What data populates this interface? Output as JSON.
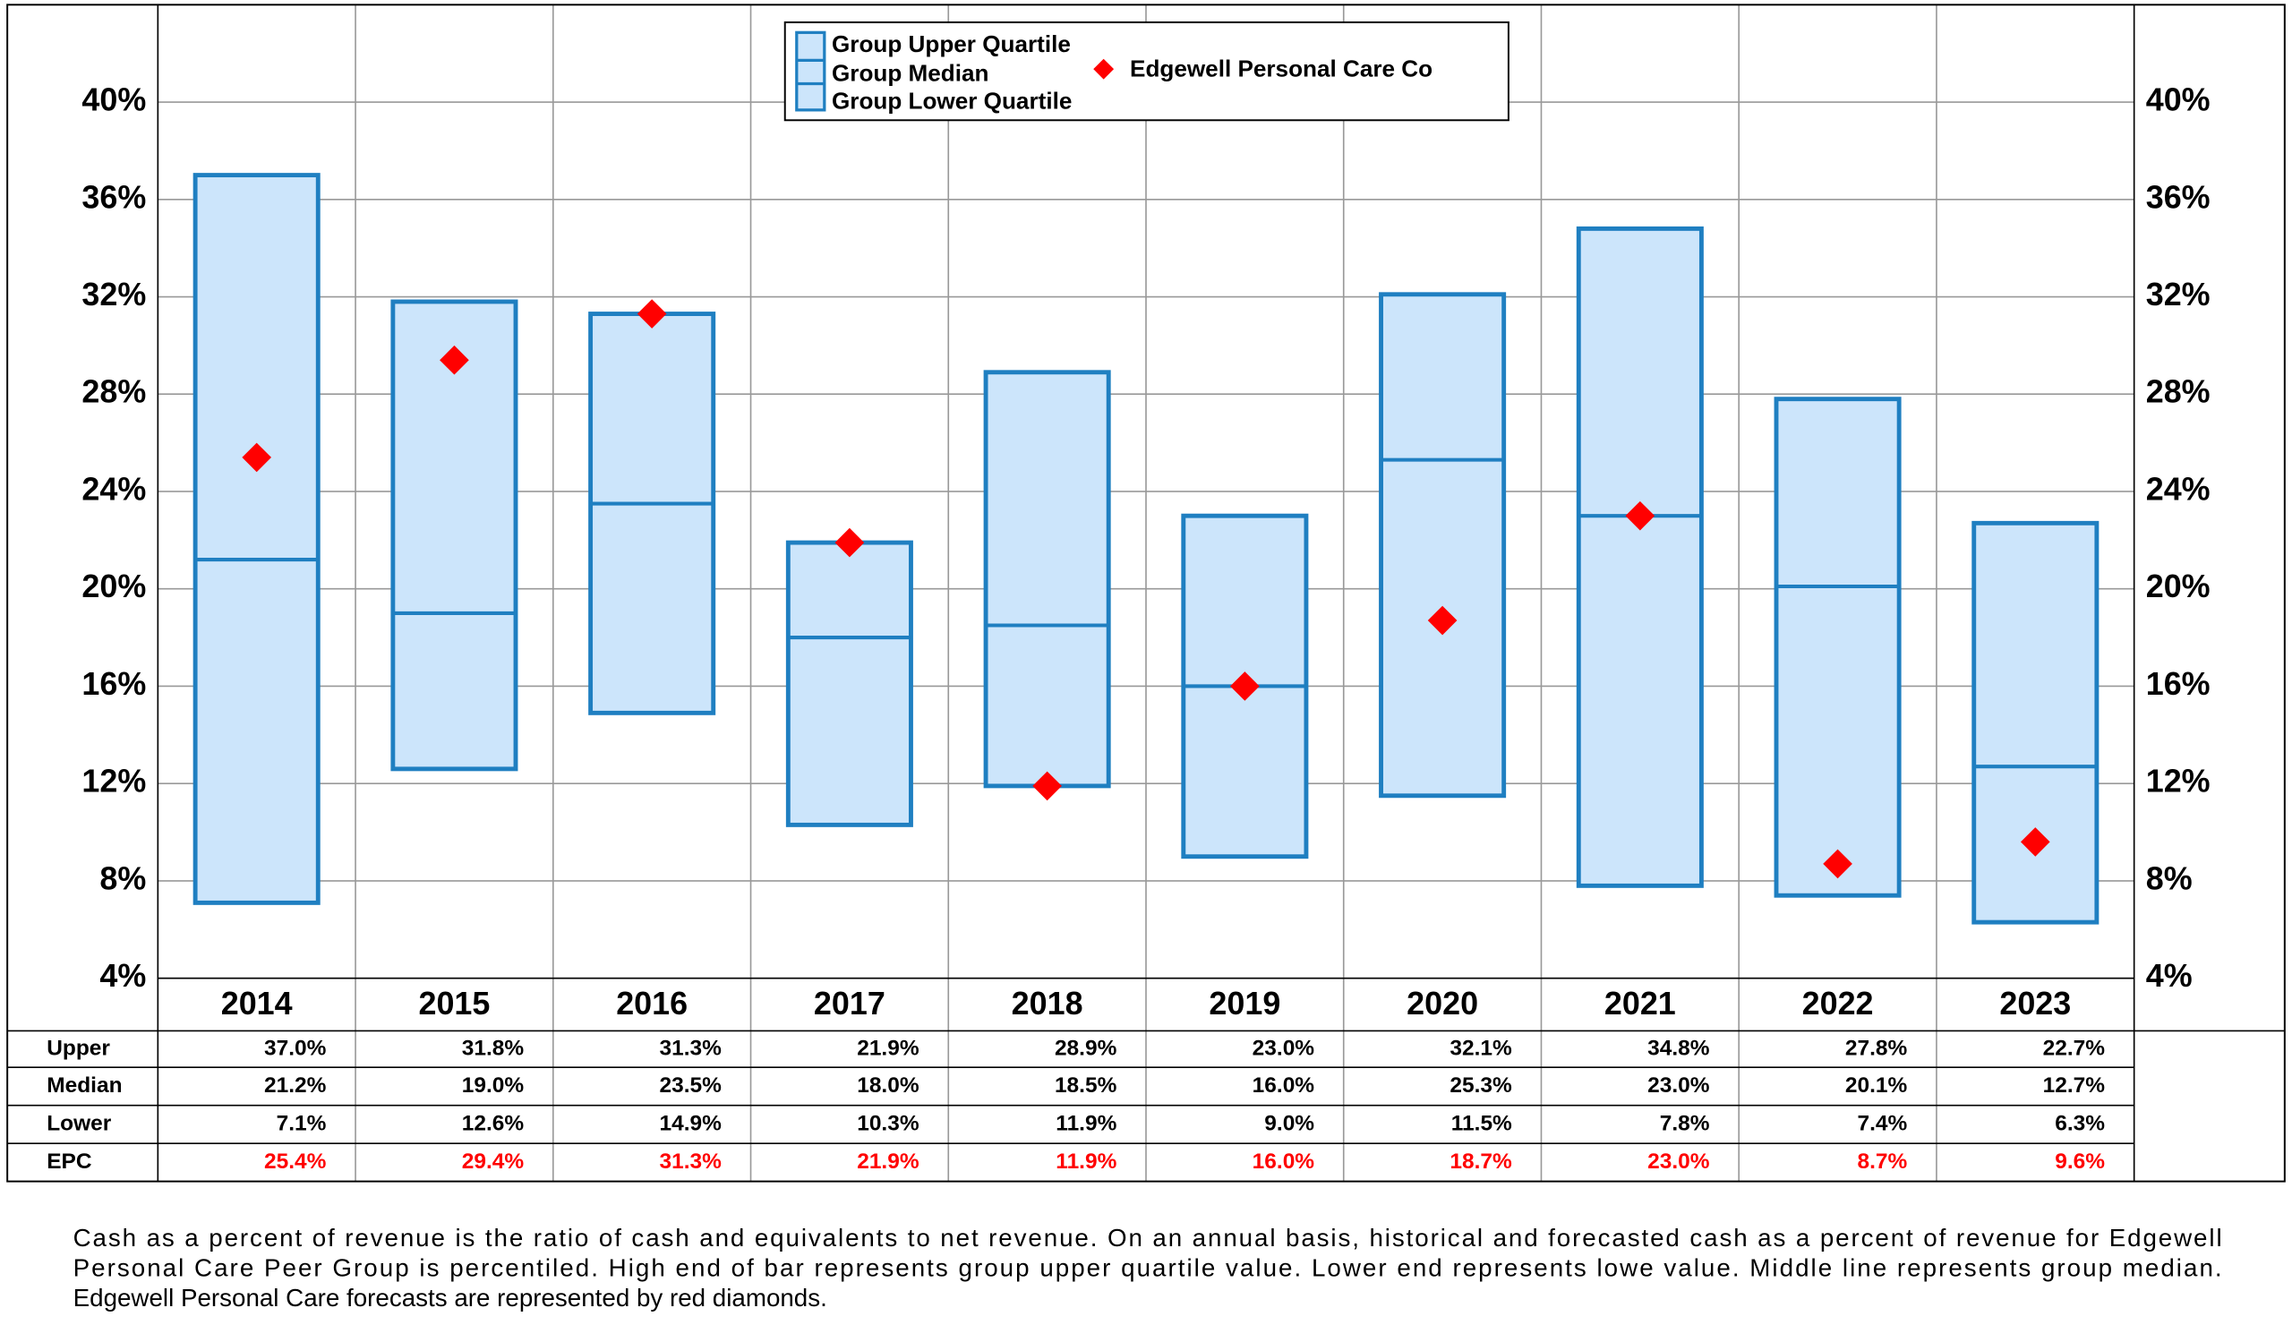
{
  "chart_data": {
    "type": "range",
    "categories": [
      "2014",
      "2015",
      "2016",
      "2017",
      "2018",
      "2019",
      "2020",
      "2021",
      "2022",
      "2023"
    ],
    "series": [
      {
        "name": "Group Upper Quartile",
        "color": "#1f7fc1",
        "values": [
          37.0,
          31.8,
          31.3,
          21.9,
          28.9,
          23.0,
          32.1,
          34.8,
          27.8,
          22.7
        ],
        "value_labels": [
          "37.0%",
          "31.8%",
          "31.3%",
          "21.9%",
          "28.9%",
          "23.0%",
          "32.1%",
          "34.8%",
          "27.8%",
          "22.7%"
        ]
      },
      {
        "name": "Group Median",
        "color": "#1f7fc1",
        "values": [
          21.2,
          19.0,
          23.5,
          18.0,
          18.5,
          16.0,
          25.3,
          23.0,
          20.1,
          12.7
        ],
        "value_labels": [
          "21.2%",
          "19.0%",
          "23.5%",
          "18.0%",
          "18.5%",
          "16.0%",
          "25.3%",
          "23.0%",
          "20.1%",
          "12.7%"
        ]
      },
      {
        "name": "Group Lower Quartile",
        "color": "#1f7fc1",
        "values": [
          7.1,
          12.6,
          14.9,
          10.3,
          11.9,
          9.0,
          11.5,
          7.8,
          7.4,
          6.3
        ],
        "value_labels": [
          "7.1%",
          "12.6%",
          "14.9%",
          "10.3%",
          "11.9%",
          "9.0%",
          "11.5%",
          "7.8%",
          "7.4%",
          "6.3%"
        ]
      },
      {
        "name": "Edgewell Personal Care Co",
        "color": "#ff0000",
        "values": [
          25.4,
          29.4,
          31.3,
          21.9,
          11.9,
          16.0,
          18.7,
          23.0,
          8.7,
          9.6
        ],
        "value_labels": [
          "25.4%",
          "29.4%",
          "31.3%",
          "21.9%",
          "11.9%",
          "16.0%",
          "18.7%",
          "23.0%",
          "8.7%",
          "9.6%"
        ]
      }
    ],
    "box_fill": "#cce5fb",
    "table_row_labels": [
      "Upper",
      "Median",
      "Lower",
      "EPC"
    ],
    "ylim": [
      4,
      44
    ],
    "yticks": [
      {
        "value": 4,
        "label": "4%"
      },
      {
        "value": 8,
        "label": "8%"
      },
      {
        "value": 12,
        "label": "12%"
      },
      {
        "value": 16,
        "label": "16%"
      },
      {
        "value": 20,
        "label": "20%"
      },
      {
        "value": 24,
        "label": "24%"
      },
      {
        "value": 28,
        "label": "28%"
      },
      {
        "value": 32,
        "label": "32%"
      },
      {
        "value": 36,
        "label": "36%"
      },
      {
        "value": 40,
        "label": "40%"
      }
    ],
    "grid": true,
    "caption": [
      "Cash as a percent of revenue is the ratio of cash and equivalents to net revenue. On an annual basis, historical and forecasted cash as a percent of revenue for Edgewell",
      "Personal Care Peer Group is percentiled. High end of bar represents group upper quartile value. Lower end represents lowe value. Middle line represents group median.",
      "Edgewell Personal Care forecasts are represented by red diamonds."
    ]
  }
}
